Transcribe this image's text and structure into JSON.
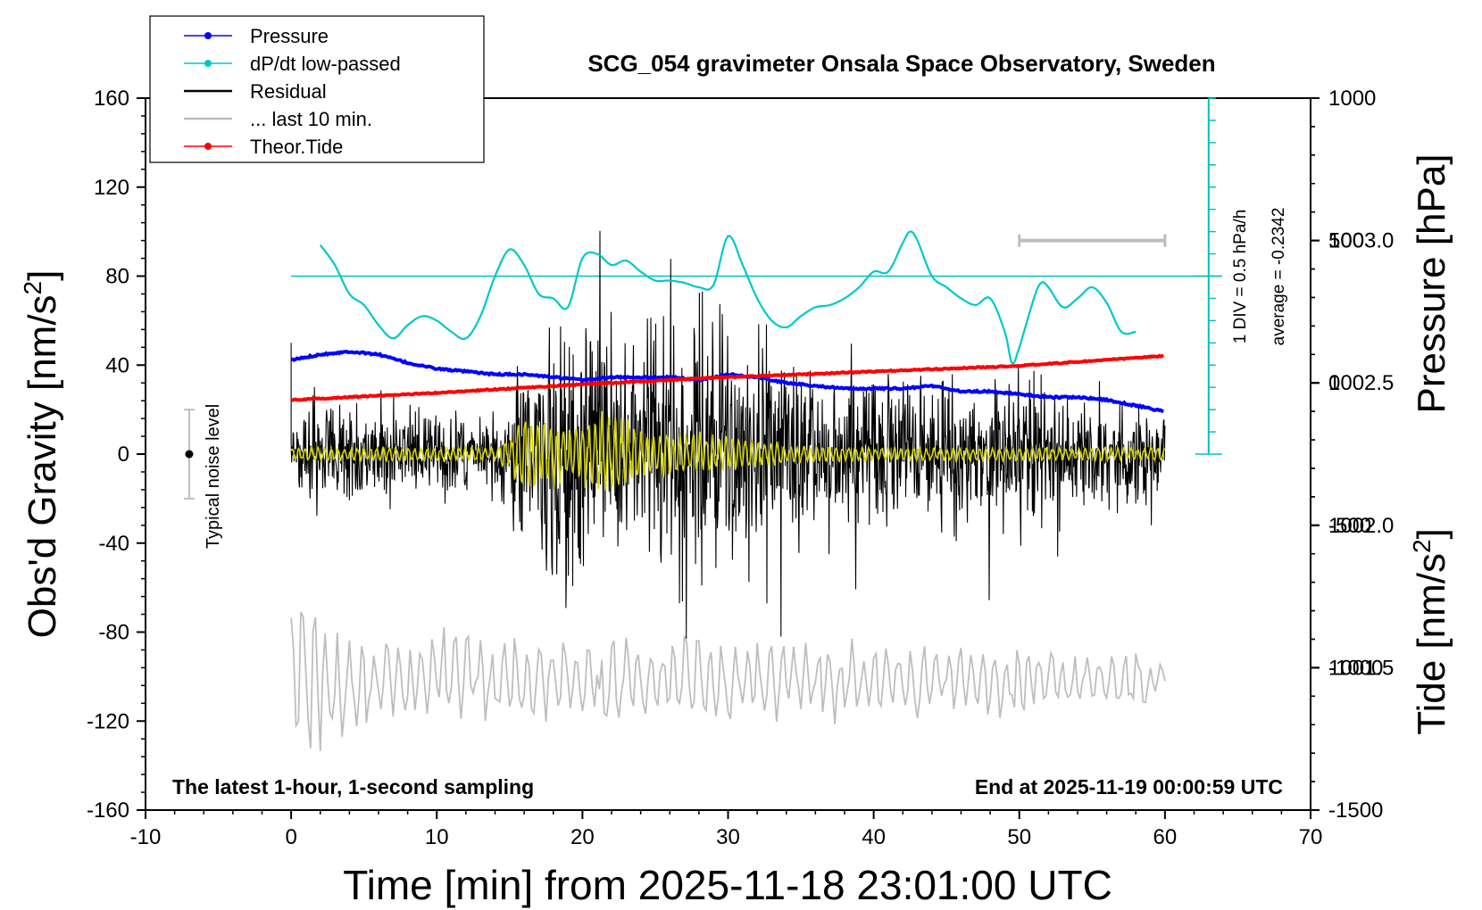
{
  "chart_data": {
    "type": "line",
    "title": "SCG_054 gravimeter Onsala Space Observatory, Sweden",
    "xlabel": "Time [min] from 2025-11-18 23:01:00 UTC",
    "ylabel_left": "Obs'd Gravity [nm/s",
    "ylabel_right_top": "Pressure [hPa]",
    "ylabel_right_bottom": "Tide [nm/s",
    "superscript": "2",
    "bracket": "]",
    "footer_left": "The latest 1-hour, 1-second sampling",
    "footer_right": "End at 2025-11-19 00:00:59 UTC",
    "noise_label": "Typical noise level",
    "div_label": "1 DIV = 0.5 hPa/h",
    "average_label": "average = -0.2342",
    "xlim": [
      -10,
      70
    ],
    "ylim_gravity": [
      -160,
      160
    ],
    "ylim_pressure": [
      1001.0,
      1003.5
    ],
    "ylim_tide": [
      -1500,
      1000
    ],
    "x_ticks": [
      "-10",
      "0",
      "10",
      "20",
      "30",
      "40",
      "50",
      "60",
      "70"
    ],
    "y_ticks_gravity": [
      "160",
      "120",
      "80",
      "40",
      "0",
      "-40",
      "-80",
      "-120",
      "-160"
    ],
    "y_ticks_pressure": [
      "1003.0",
      "1002.5",
      "1002.0",
      "1001.5"
    ],
    "y_ticks_tide": [
      "1000",
      "500",
      "0",
      "-500",
      "-1000",
      "-1500"
    ],
    "legend": [
      {
        "label": "Pressure",
        "color": "#0000ff",
        "marker": "dot"
      },
      {
        "label": "dP/dt low-passed",
        "color": "#00c8c8",
        "marker": "dot"
      },
      {
        "label": "Residual",
        "color": "#000000",
        "marker": "none"
      },
      {
        "label": "... last 10 min.",
        "color": "#bebebe",
        "marker": "none"
      },
      {
        "label": "Theor.Tide",
        "color": "#ff0000",
        "marker": "dot"
      }
    ],
    "series": [
      {
        "name": "Pressure",
        "axis": "pressure",
        "color": "#0000ff",
        "x": [
          0,
          2,
          4,
          6,
          8,
          10,
          12,
          14,
          16,
          18,
          20,
          22,
          24,
          26,
          28,
          30,
          32,
          34,
          36,
          38,
          40,
          42,
          44,
          46,
          48,
          50,
          52,
          54,
          56,
          58,
          60
        ],
        "values": [
          1002.58,
          1002.6,
          1002.61,
          1002.6,
          1002.57,
          1002.55,
          1002.54,
          1002.53,
          1002.53,
          1002.52,
          1002.51,
          1002.52,
          1002.52,
          1002.52,
          1002.51,
          1002.53,
          1002.52,
          1002.5,
          1002.49,
          1002.48,
          1002.48,
          1002.48,
          1002.49,
          1002.47,
          1002.47,
          1002.46,
          1002.45,
          1002.45,
          1002.44,
          1002.42,
          1002.4
        ]
      },
      {
        "name": "dP/dt low-passed",
        "axis": "gravity",
        "color": "#00c8c8",
        "x": [
          2,
          3,
          4,
          5,
          6,
          7,
          8,
          9,
          10,
          11,
          12,
          13,
          14,
          15,
          16,
          17,
          18,
          19,
          20,
          21,
          22,
          23,
          24,
          25,
          26,
          27,
          28,
          29,
          30,
          31,
          32,
          33,
          34,
          35,
          36,
          37,
          38,
          39,
          40,
          41,
          42,
          42.5,
          43,
          44,
          45,
          46,
          47,
          48,
          49,
          49.5,
          50,
          51,
          51.5,
          52,
          53,
          54,
          55,
          56,
          57,
          58
        ],
        "values": [
          94,
          85,
          72,
          67,
          58,
          52,
          58,
          62,
          60,
          55,
          52,
          62,
          80,
          92,
          85,
          72,
          70,
          66,
          88,
          90,
          85,
          87,
          82,
          78,
          78,
          77,
          75,
          76,
          98,
          85,
          70,
          60,
          57,
          62,
          66,
          67,
          70,
          75,
          82,
          82,
          95,
          100,
          96,
          80,
          75,
          70,
          67,
          70,
          55,
          41,
          48,
          70,
          77,
          75,
          66,
          70,
          75,
          68,
          55,
          55
        ]
      },
      {
        "name": "Residual",
        "axis": "gravity",
        "color": "#000000",
        "envelope": {
          "x": [
            0,
            2,
            4,
            6,
            8,
            10,
            12,
            14,
            15,
            16,
            17,
            18,
            19,
            20,
            21,
            22,
            23,
            24,
            25,
            26,
            27,
            28,
            29,
            30,
            31,
            32,
            33,
            34,
            35,
            36,
            38,
            40,
            42,
            44,
            46,
            48,
            50,
            52,
            54,
            56,
            58,
            60
          ],
          "amplitude": [
            15,
            18,
            17,
            15,
            15,
            16,
            15,
            16,
            22,
            40,
            50,
            52,
            55,
            58,
            52,
            50,
            50,
            48,
            46,
            45,
            47,
            52,
            55,
            53,
            45,
            42,
            40,
            38,
            32,
            28,
            28,
            30,
            28,
            28,
            26,
            26,
            28,
            26,
            24,
            22,
            20,
            16
          ]
        }
      },
      {
        "name": "Residual low-passed",
        "axis": "gravity",
        "color": "#d4d400",
        "envelope": {
          "x": [
            0,
            14,
            15,
            16,
            17,
            18,
            19,
            20,
            21,
            22,
            23,
            24,
            26,
            28,
            30,
            32,
            34,
            40,
            60
          ],
          "amplitude": [
            3,
            3,
            8,
            18,
            14,
            16,
            12,
            14,
            16,
            20,
            18,
            10,
            9,
            10,
            8,
            6,
            4,
            3,
            3
          ]
        }
      },
      {
        "name": "... last 10 min.",
        "axis": "gravity",
        "color": "#bebebe",
        "baseline": -102,
        "envelope": {
          "x": [
            0,
            1,
            2,
            5,
            10,
            12,
            15,
            20,
            30,
            40,
            50,
            60
          ],
          "amplitude": [
            30,
            38,
            30,
            20,
            18,
            26,
            20,
            18,
            18,
            18,
            15,
            12
          ]
        }
      },
      {
        "name": "Theor.Tide",
        "axis": "tide",
        "color": "#ff0000",
        "x": [
          0,
          10,
          20,
          30,
          40,
          50,
          60
        ],
        "values": [
          -60,
          -35,
          -5,
          20,
          40,
          60,
          95
        ]
      }
    ],
    "noise_level": {
      "x": -7,
      "center": 0,
      "half_range": 20
    },
    "ten_minute_bar": {
      "x_start": 50,
      "x_end": 60,
      "tide_value": 500
    },
    "dpdt_zero_line": 80,
    "dpdt_div_axis": {
      "x": 63,
      "min": 0,
      "max": 160,
      "divisions": 16
    }
  }
}
